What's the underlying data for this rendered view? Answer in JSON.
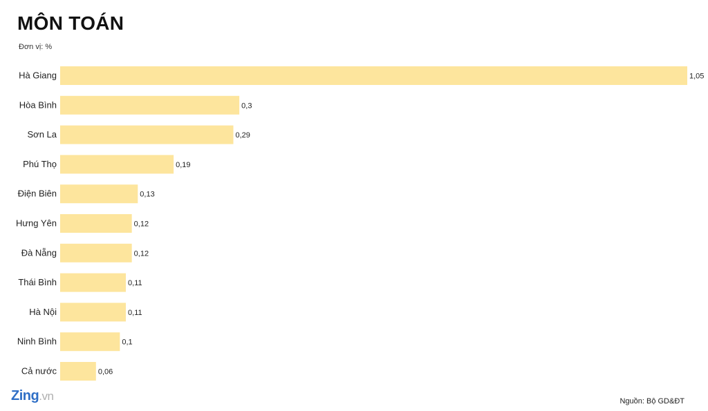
{
  "header": {
    "title": "MÔN TOÁN",
    "unit": "Đơn vị: %"
  },
  "footer": {
    "logo_main": "Zing",
    "logo_suffix": ".vn",
    "source": "Nguồn: Bộ GD&ĐT"
  },
  "colors": {
    "bar": "#fde59d",
    "logo": "#2f6fc6"
  },
  "chart_data": {
    "type": "bar",
    "orientation": "horizontal",
    "title": "MÔN TOÁN",
    "unit": "Đơn vị: %",
    "categories": [
      "Hà Giang",
      "Hòa Bình",
      "Sơn La",
      "Phú Thọ",
      "Điện Biên",
      "Hưng Yên",
      "Đà Nẵng",
      "Thái Bình",
      "Hà Nội",
      "Ninh Bình",
      "Cả nước"
    ],
    "values": [
      1.05,
      0.3,
      0.29,
      0.19,
      0.13,
      0.12,
      0.12,
      0.11,
      0.11,
      0.1,
      0.06
    ],
    "value_labels": [
      "1,05",
      "0,3",
      "0,29",
      "0,19",
      "0,13",
      "0,12",
      "0,12",
      "0,11",
      "0,11",
      "0,1",
      "0,06"
    ],
    "xlim": [
      0,
      1.05
    ],
    "grid": false,
    "legend": "none"
  }
}
